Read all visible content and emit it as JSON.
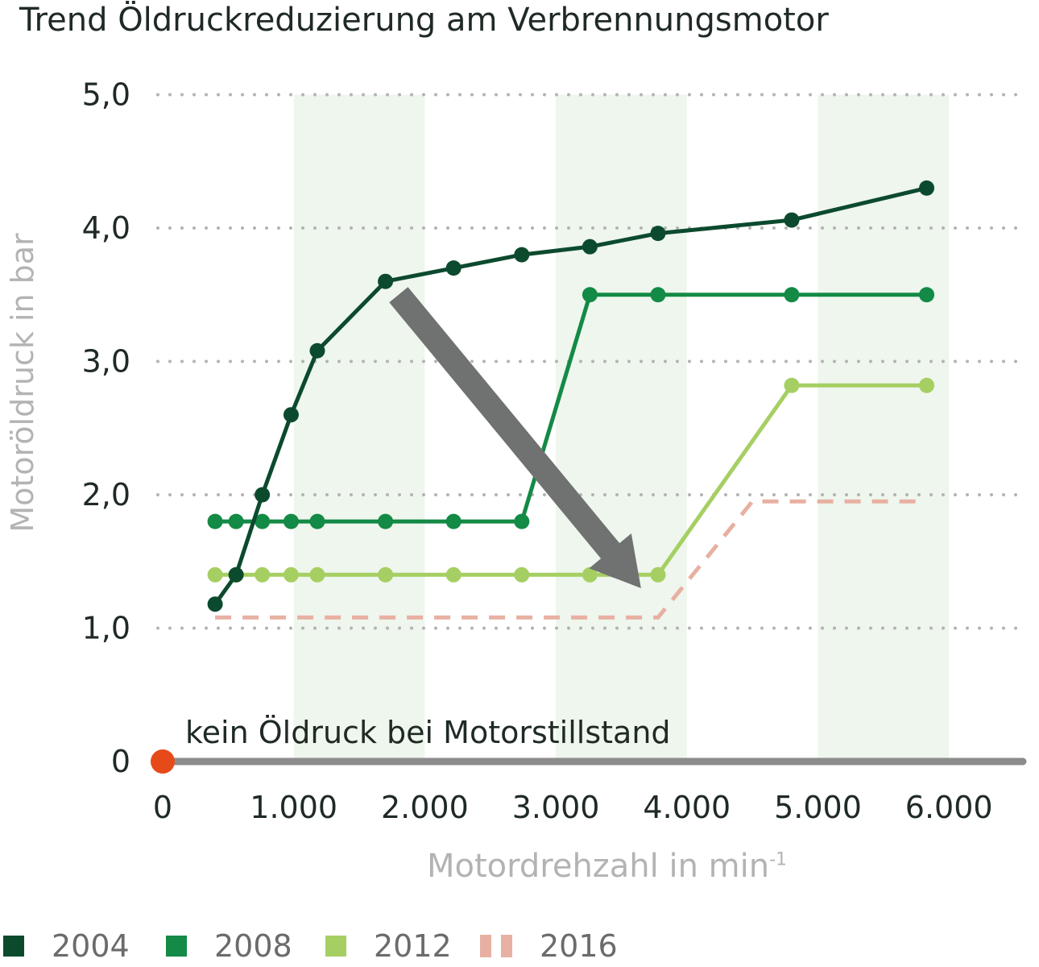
{
  "title": "Trend Öldruckreduzierung am Verbrennungsmotor",
  "ylabel": "Motoröldruck in bar",
  "xlabel": "Motordrehzahl in min",
  "xlabel_sup": "-1",
  "annotation": "kein Öldruck bei Motorstillstand",
  "colors": {
    "s2004": "#0c4a2e",
    "s2008": "#138a45",
    "s2012": "#a6cf63",
    "s2016": "#e8b0a2",
    "band": "#eef6ed",
    "grid": "#b3b3b3",
    "axis": "#8c8c8c",
    "zero_marker": "#e64a19",
    "arrow": "#6f7271"
  },
  "chart_data": {
    "type": "line",
    "title": "Trend Öldruckreduzierung am Verbrennungsmotor",
    "xlabel": "Motordrehzahl in min-1",
    "ylabel": "Motoröldruck in bar",
    "xlim": [
      0,
      6500
    ],
    "ylim": [
      0,
      5
    ],
    "x_ticks": [
      "0",
      "1.000",
      "2.000",
      "3.000",
      "4.000",
      "5.000",
      "6.000"
    ],
    "x_tick_values": [
      0,
      1000,
      2000,
      3000,
      4000,
      5000,
      6000
    ],
    "y_ticks": [
      "0",
      "1,0",
      "2,0",
      "3,0",
      "4,0",
      "5,0"
    ],
    "y_tick_values": [
      0,
      1,
      2,
      3,
      4,
      5
    ],
    "shaded_bands": [
      [
        1000,
        2000
      ],
      [
        3000,
        4000
      ],
      [
        5000,
        6000
      ]
    ],
    "grid": "horizontal dotted",
    "legend_position": "bottom",
    "zero_point": {
      "x": 0,
      "y": 0
    },
    "trend_arrow": {
      "from": [
        1800,
        3.5
      ],
      "to": [
        3650,
        1.3
      ]
    },
    "series": [
      {
        "name": "2004",
        "style": "solid-markers",
        "points": [
          [
            400,
            1.18
          ],
          [
            560,
            1.4
          ],
          [
            760,
            2.0
          ],
          [
            980,
            2.6
          ],
          [
            1180,
            3.08
          ],
          [
            1700,
            3.6
          ],
          [
            2220,
            3.7
          ],
          [
            2740,
            3.8
          ],
          [
            3260,
            3.86
          ],
          [
            3780,
            3.96
          ],
          [
            4800,
            4.06
          ],
          [
            5830,
            4.3
          ]
        ]
      },
      {
        "name": "2008",
        "style": "solid-markers",
        "points": [
          [
            400,
            1.8
          ],
          [
            560,
            1.8
          ],
          [
            760,
            1.8
          ],
          [
            980,
            1.8
          ],
          [
            1180,
            1.8
          ],
          [
            1700,
            1.8
          ],
          [
            2220,
            1.8
          ],
          [
            2740,
            1.8
          ],
          [
            3260,
            3.5
          ],
          [
            3780,
            3.5
          ],
          [
            4800,
            3.5
          ],
          [
            5830,
            3.5
          ]
        ]
      },
      {
        "name": "2012",
        "style": "solid-markers",
        "points": [
          [
            400,
            1.4
          ],
          [
            560,
            1.4
          ],
          [
            760,
            1.4
          ],
          [
            980,
            1.4
          ],
          [
            1180,
            1.4
          ],
          [
            1700,
            1.4
          ],
          [
            2220,
            1.4
          ],
          [
            2740,
            1.4
          ],
          [
            3260,
            1.4
          ],
          [
            3780,
            1.4
          ],
          [
            4800,
            2.82
          ],
          [
            5830,
            2.82
          ]
        ]
      },
      {
        "name": "2016",
        "style": "dashed",
        "points": [
          [
            400,
            1.08
          ],
          [
            3780,
            1.08
          ],
          [
            4500,
            1.95
          ],
          [
            5830,
            1.95
          ]
        ]
      }
    ]
  }
}
